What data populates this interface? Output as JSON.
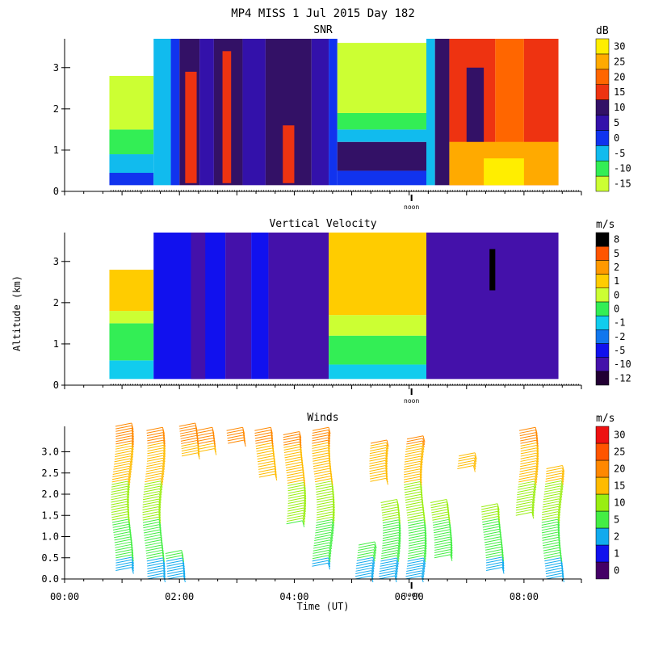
{
  "figure": {
    "title": "MP4 MISS   1 Jul 2015 Day 182",
    "ylabel": "Altitude (km)",
    "xlabel": "Time (UT)",
    "noon_label": "noon"
  },
  "chart_data": [
    {
      "type": "heatmap",
      "title": "SNR",
      "units": "dB",
      "ylim": [
        0,
        3.7
      ],
      "yticks": [
        "0",
        "1",
        "2",
        "3"
      ],
      "colorbar": {
        "labels": [
          "-15",
          "-10",
          "-5",
          "0",
          "5",
          "10",
          "15",
          "20",
          "25",
          "30"
        ],
        "colors": [
          "#ccff33",
          "#33ee55",
          "#11bbee",
          "#1133ee",
          "#3311aa",
          "#331166",
          "#ee3311",
          "#ff6600",
          "#ffaa00",
          "#ffee00"
        ]
      },
      "blocks": [
        {
          "t0": 0.78,
          "t1": 1.55,
          "a0": 0.15,
          "a1": 0.45,
          "c": "#1133ee"
        },
        {
          "t0": 0.78,
          "t1": 1.55,
          "a0": 0.45,
          "a1": 0.9,
          "c": "#11bbee"
        },
        {
          "t0": 0.78,
          "t1": 1.55,
          "a0": 0.9,
          "a1": 1.5,
          "c": "#33ee55"
        },
        {
          "t0": 0.78,
          "t1": 1.55,
          "a0": 1.5,
          "a1": 2.8,
          "c": "#ccff33"
        },
        {
          "t0": 1.55,
          "t1": 1.85,
          "a0": 0.15,
          "a1": 3.7,
          "c": "#11bbee"
        },
        {
          "t0": 1.85,
          "t1": 2.0,
          "a0": 0.15,
          "a1": 3.7,
          "c": "#1133ee"
        },
        {
          "t0": 2.0,
          "t1": 2.35,
          "a0": 0.15,
          "a1": 3.7,
          "c": "#331166"
        },
        {
          "t0": 2.1,
          "t1": 2.3,
          "a0": 0.2,
          "a1": 2.9,
          "c": "#ee3311"
        },
        {
          "t0": 2.35,
          "t1": 2.6,
          "a0": 0.15,
          "a1": 3.7,
          "c": "#3311aa"
        },
        {
          "t0": 2.6,
          "t1": 3.1,
          "a0": 0.15,
          "a1": 3.7,
          "c": "#331166"
        },
        {
          "t0": 2.75,
          "t1": 2.9,
          "a0": 0.2,
          "a1": 3.4,
          "c": "#ee3311"
        },
        {
          "t0": 3.1,
          "t1": 3.5,
          "a0": 0.15,
          "a1": 3.7,
          "c": "#3311aa"
        },
        {
          "t0": 3.5,
          "t1": 4.3,
          "a0": 0.15,
          "a1": 3.7,
          "c": "#331166"
        },
        {
          "t0": 3.8,
          "t1": 4.0,
          "a0": 0.2,
          "a1": 1.6,
          "c": "#ee3311"
        },
        {
          "t0": 4.3,
          "t1": 4.6,
          "a0": 0.15,
          "a1": 3.7,
          "c": "#3311aa"
        },
        {
          "t0": 4.6,
          "t1": 4.75,
          "a0": 0.15,
          "a1": 3.7,
          "c": "#1133ee"
        },
        {
          "t0": 4.75,
          "t1": 6.3,
          "a0": 0.15,
          "a1": 0.5,
          "c": "#1133ee"
        },
        {
          "t0": 4.75,
          "t1": 6.3,
          "a0": 0.5,
          "a1": 1.2,
          "c": "#331166"
        },
        {
          "t0": 4.75,
          "t1": 6.3,
          "a0": 1.2,
          "a1": 1.5,
          "c": "#11bbee"
        },
        {
          "t0": 4.75,
          "t1": 6.3,
          "a0": 1.5,
          "a1": 1.9,
          "c": "#33ee55"
        },
        {
          "t0": 4.75,
          "t1": 6.3,
          "a0": 1.9,
          "a1": 3.6,
          "c": "#ccff33"
        },
        {
          "t0": 6.3,
          "t1": 6.45,
          "a0": 0.15,
          "a1": 3.7,
          "c": "#11bbee"
        },
        {
          "t0": 6.45,
          "t1": 6.7,
          "a0": 0.15,
          "a1": 3.7,
          "c": "#331166"
        },
        {
          "t0": 6.7,
          "t1": 7.5,
          "a0": 0.15,
          "a1": 3.7,
          "c": "#ee3311"
        },
        {
          "t0": 7.5,
          "t1": 8.0,
          "a0": 0.15,
          "a1": 3.7,
          "c": "#ff6600"
        },
        {
          "t0": 8.0,
          "t1": 8.6,
          "a0": 0.15,
          "a1": 3.7,
          "c": "#ee3311"
        },
        {
          "t0": 6.7,
          "t1": 8.6,
          "a0": 0.15,
          "a1": 1.2,
          "c": "#ffaa00"
        },
        {
          "t0": 7.3,
          "t1": 8.0,
          "a0": 0.15,
          "a1": 0.8,
          "c": "#ffee00"
        },
        {
          "t0": 7.0,
          "t1": 7.3,
          "a0": 1.2,
          "a1": 3.0,
          "c": "#331166"
        }
      ]
    },
    {
      "type": "heatmap",
      "title": "Vertical Velocity",
      "units": "m/s",
      "ylim": [
        0,
        3.7
      ],
      "yticks": [
        "0",
        "1",
        "2",
        "3"
      ],
      "colorbar": {
        "labels": [
          "-12",
          "-10",
          "-5",
          "-2",
          "-1",
          "0",
          "0",
          "1",
          "2",
          "5",
          "8"
        ],
        "colors": [
          "#220033",
          "#4411aa",
          "#1111ee",
          "#1177ee",
          "#11ccee",
          "#33ee55",
          "#ccff33",
          "#ffcc00",
          "#ff9900",
          "#ff5500",
          "#000000"
        ]
      },
      "blocks": [
        {
          "t0": 0.78,
          "t1": 1.55,
          "a0": 0.15,
          "a1": 0.6,
          "c": "#11ccee"
        },
        {
          "t0": 0.78,
          "t1": 1.55,
          "a0": 0.6,
          "a1": 1.5,
          "c": "#33ee55"
        },
        {
          "t0": 0.78,
          "t1": 1.55,
          "a0": 1.5,
          "a1": 1.8,
          "c": "#ccff33"
        },
        {
          "t0": 0.78,
          "t1": 1.55,
          "a0": 1.8,
          "a1": 2.8,
          "c": "#ffcc00"
        },
        {
          "t0": 1.55,
          "t1": 2.8,
          "a0": 0.15,
          "a1": 3.7,
          "c": "#1111ee"
        },
        {
          "t0": 2.2,
          "t1": 2.45,
          "a0": 0.15,
          "a1": 3.7,
          "c": "#4411aa"
        },
        {
          "t0": 2.8,
          "t1": 3.25,
          "a0": 0.15,
          "a1": 3.7,
          "c": "#4411aa"
        },
        {
          "t0": 3.25,
          "t1": 3.55,
          "a0": 0.15,
          "a1": 3.7,
          "c": "#1111ee"
        },
        {
          "t0": 3.55,
          "t1": 4.6,
          "a0": 0.15,
          "a1": 3.7,
          "c": "#4411aa"
        },
        {
          "t0": 4.6,
          "t1": 6.3,
          "a0": 0.15,
          "a1": 0.5,
          "c": "#11ccee"
        },
        {
          "t0": 4.6,
          "t1": 6.3,
          "a0": 0.5,
          "a1": 1.2,
          "c": "#33ee55"
        },
        {
          "t0": 4.6,
          "t1": 6.3,
          "a0": 1.2,
          "a1": 1.7,
          "c": "#ccff33"
        },
        {
          "t0": 4.6,
          "t1": 6.3,
          "a0": 1.7,
          "a1": 3.7,
          "c": "#ffcc00"
        },
        {
          "t0": 6.3,
          "t1": 8.6,
          "a0": 0.15,
          "a1": 3.7,
          "c": "#4411aa"
        },
        {
          "t0": 7.4,
          "t1": 7.5,
          "a0": 2.3,
          "a1": 3.3,
          "c": "#000000"
        }
      ]
    },
    {
      "type": "scatter",
      "title": "Winds",
      "units": "m/s",
      "ylim": [
        0,
        3.6
      ],
      "yticks": [
        "0.0",
        "0.5",
        "1.0",
        "1.5",
        "2.0",
        "2.5",
        "3.0"
      ],
      "colorbar": {
        "labels": [
          "0",
          "1",
          "2",
          "5",
          "10",
          "15",
          "20",
          "25",
          "30"
        ],
        "colors": [
          "#440066",
          "#1111ee",
          "#11aaee",
          "#44ee44",
          "#99ee11",
          "#ffbb00",
          "#ff8800",
          "#ff5500",
          "#ee1111"
        ]
      },
      "columns": [
        {
          "t": 0.85,
          "a0": 0.2,
          "a1": 3.6
        },
        {
          "t": 1.4,
          "a0": 0.0,
          "a1": 3.5
        },
        {
          "t": 1.75,
          "a0": 0.0,
          "a1": 0.6
        },
        {
          "t": 2.0,
          "a0": 2.9,
          "a1": 3.6
        },
        {
          "t": 2.3,
          "a0": 3.0,
          "a1": 3.5
        },
        {
          "t": 2.85,
          "a0": 3.2,
          "a1": 3.5
        },
        {
          "t": 3.35,
          "a0": 2.4,
          "a1": 3.5
        },
        {
          "t": 3.85,
          "a0": 1.3,
          "a1": 3.4
        },
        {
          "t": 4.35,
          "a0": 0.3,
          "a1": 3.5
        },
        {
          "t": 5.1,
          "a0": 0.0,
          "a1": 0.8
        },
        {
          "t": 5.35,
          "a0": 2.3,
          "a1": 3.2
        },
        {
          "t": 5.5,
          "a0": 0.0,
          "a1": 1.8
        },
        {
          "t": 5.95,
          "a0": 0.0,
          "a1": 3.3
        },
        {
          "t": 6.4,
          "a0": 0.5,
          "a1": 1.8
        },
        {
          "t": 6.85,
          "a0": 2.6,
          "a1": 2.9
        },
        {
          "t": 7.3,
          "a0": 0.2,
          "a1": 1.7
        },
        {
          "t": 7.9,
          "a0": 1.5,
          "a1": 3.5
        },
        {
          "t": 8.35,
          "a0": 0.0,
          "a1": 2.6
        }
      ]
    }
  ],
  "x_axis": {
    "range": [
      0,
      9
    ],
    "tick_labels": [
      "00:00",
      "02:00",
      "04:00",
      "06:00",
      "08:00"
    ]
  }
}
